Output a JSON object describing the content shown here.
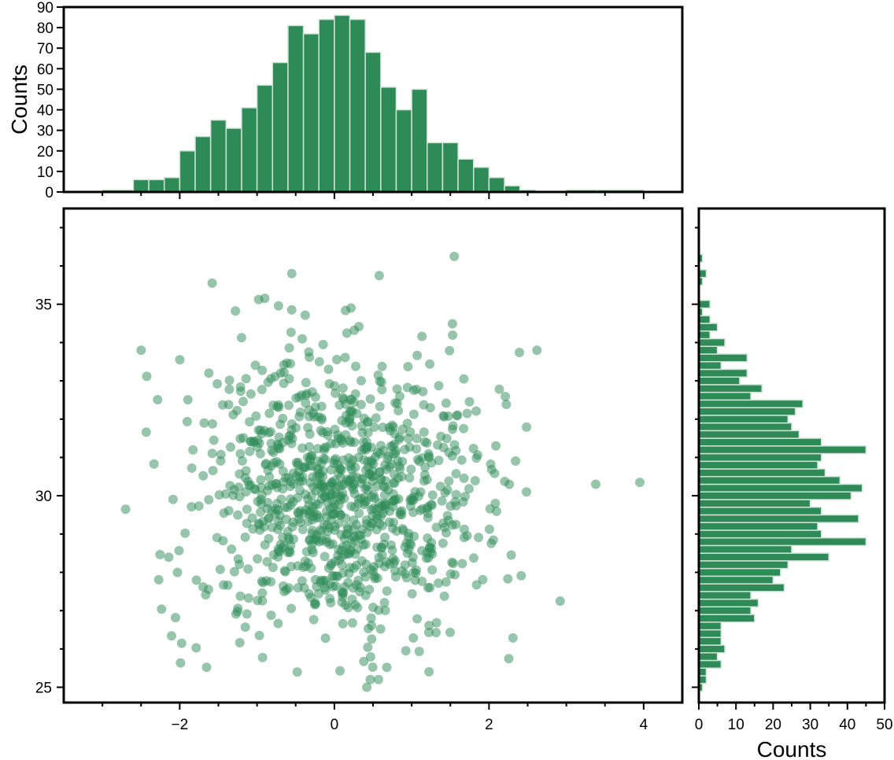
{
  "figure": {
    "background": "#ffffff",
    "mark_color": "#2e8b57",
    "hist_edge_color": "#cfe3d7"
  },
  "chart_data": [
    {
      "id": "top-histogram",
      "type": "bar",
      "orientation": "vertical",
      "ylabel": "Counts",
      "xlim": [
        -3.5,
        4.5
      ],
      "ylim": [
        0,
        90
      ],
      "y_ticks": [
        0,
        10,
        20,
        30,
        40,
        50,
        60,
        70,
        80,
        90
      ],
      "bin_edges": [
        -3.0,
        -2.6,
        -2.4,
        -2.2,
        -2.0,
        -1.8,
        -1.6,
        -1.4,
        -1.2,
        -1.0,
        -0.8,
        -0.6,
        -0.4,
        -0.2,
        0.0,
        0.2,
        0.4,
        0.6,
        0.8,
        1.0,
        1.2,
        1.4,
        1.6,
        1.8,
        2.0,
        2.2,
        2.4,
        2.6,
        2.8,
        3.0,
        3.4,
        4.0
      ],
      "values": [
        1,
        6,
        6,
        7,
        20,
        27,
        35,
        31,
        41,
        52,
        63,
        81,
        77,
        84,
        86,
        84,
        68,
        51,
        40,
        50,
        24,
        24,
        16,
        12,
        7,
        3,
        1,
        0,
        0,
        1,
        1
      ]
    },
    {
      "id": "scatter",
      "type": "scatter",
      "xlim": [
        -3.5,
        4.5
      ],
      "ylim": [
        24.6,
        37.5
      ],
      "x_ticks": [
        -2,
        0,
        2,
        4
      ],
      "x_tick_labels": [
        "−2",
        "0",
        "2",
        "4"
      ],
      "y_ticks": [
        25,
        30,
        35
      ],
      "y_tick_labels": [
        "25",
        "30",
        "35"
      ],
      "n_points": 1000,
      "distribution": {
        "x_mean": 0.05,
        "x_sd": 0.95,
        "y_mean": 30.0,
        "y_sd": 1.85
      },
      "notable_points": [
        {
          "x": 3.95,
          "y": 30.35
        },
        {
          "x": 3.38,
          "y": 30.3
        },
        {
          "x": 2.92,
          "y": 27.25
        },
        {
          "x": 1.55,
          "y": 36.25
        },
        {
          "x": -1.58,
          "y": 35.55
        },
        {
          "x": -0.55,
          "y": 35.8
        },
        {
          "x": 0.58,
          "y": 35.75
        },
        {
          "x": -2.7,
          "y": 29.65
        },
        {
          "x": -2.5,
          "y": 33.8
        },
        {
          "x": 2.62,
          "y": 33.8
        },
        {
          "x": 0.42,
          "y": 25.0
        },
        {
          "x": 0.57,
          "y": 25.2
        },
        {
          "x": -0.48,
          "y": 25.4
        }
      ]
    },
    {
      "id": "right-histogram",
      "type": "bar",
      "orientation": "horizontal",
      "xlabel": "Counts",
      "xlim": [
        0,
        50
      ],
      "x_ticks": [
        0,
        10,
        20,
        30,
        40,
        50
      ],
      "ylim": [
        24.6,
        37.5
      ],
      "bin_edges": [
        24.9,
        25.1,
        25.3,
        25.5,
        25.7,
        25.9,
        26.1,
        26.3,
        26.5,
        26.7,
        26.9,
        27.1,
        27.3,
        27.5,
        27.7,
        27.9,
        28.1,
        28.3,
        28.5,
        28.7,
        28.9,
        29.1,
        29.3,
        29.5,
        29.7,
        29.9,
        30.1,
        30.3,
        30.5,
        30.7,
        30.9,
        31.1,
        31.3,
        31.5,
        31.7,
        31.9,
        32.1,
        32.3,
        32.5,
        32.7,
        32.9,
        33.1,
        33.3,
        33.5,
        33.7,
        33.9,
        34.1,
        34.3,
        34.5,
        34.7,
        34.9,
        35.1,
        35.3,
        35.5,
        35.7,
        35.9,
        36.1,
        36.3
      ],
      "values": [
        1,
        2,
        2,
        6,
        5,
        7,
        6,
        6,
        6,
        15,
        14,
        16,
        14,
        23,
        20,
        22,
        24,
        35,
        25,
        45,
        33,
        32,
        43,
        33,
        30,
        41,
        44,
        38,
        34,
        32,
        33,
        45,
        33,
        27,
        25,
        24,
        26,
        28,
        14,
        17,
        11,
        13,
        6,
        13,
        5,
        7,
        3,
        5,
        3,
        1,
        3,
        0,
        0,
        1,
        2,
        0,
        1
      ]
    }
  ]
}
